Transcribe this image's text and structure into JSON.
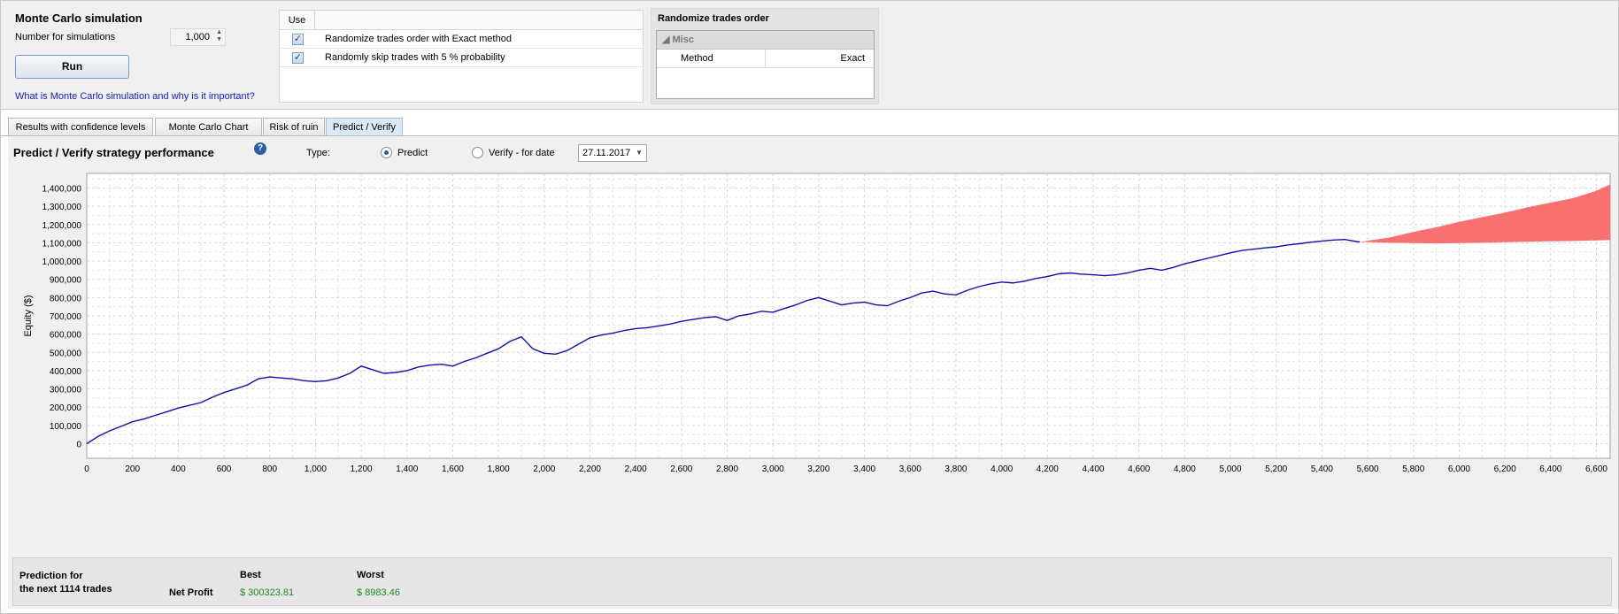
{
  "montecarlo": {
    "title": "Monte Carlo simulation",
    "num_label": "Number for simulations",
    "num_value": "1,000",
    "run_label": "Run",
    "help_link": "What is Monte Carlo simulation and why is it important?"
  },
  "use_table": {
    "header": "Use",
    "rows": [
      {
        "checked": true,
        "label": "Randomize trades order with Exact method"
      },
      {
        "checked": true,
        "label": "Randomly skip trades with 5 % probability"
      }
    ]
  },
  "randomize_panel": {
    "title": "Randomize trades order",
    "group": "Misc",
    "property_key": "Method",
    "property_value": "Exact"
  },
  "tabs": [
    {
      "label": "Results with confidence levels",
      "active": false
    },
    {
      "label": "Monte Carlo Chart",
      "active": false
    },
    {
      "label": "Risk of ruin",
      "active": false
    },
    {
      "label": "Predict / Verify",
      "active": true
    }
  ],
  "predict": {
    "title": "Predict / Verify strategy performance",
    "help_icon": "question-icon",
    "type_label": "Type:",
    "predict_label": "Predict",
    "predict_selected": true,
    "verify_label": "Verify - for date",
    "date_value": "27.11.2017"
  },
  "chart_data": {
    "type": "line",
    "ylabel": "Equity ($)",
    "xlabel": "",
    "xlim": [
      0,
      6660
    ],
    "ylim": [
      -80000,
      1480000
    ],
    "x_ticks": [
      "0",
      "200",
      "400",
      "600",
      "800",
      "1,000",
      "1,200",
      "1,400",
      "1,600",
      "1,800",
      "2,000",
      "2,200",
      "2,400",
      "2,600",
      "2,800",
      "3,000",
      "3,200",
      "3,400",
      "3,600",
      "3,800",
      "4,000",
      "4,200",
      "4,400",
      "4,600",
      "4,800",
      "5,000",
      "5,200",
      "5,400",
      "5,600",
      "5,800",
      "6,000",
      "6,200",
      "6,400",
      "6,600"
    ],
    "x_tick_values": [
      0,
      200,
      400,
      600,
      800,
      1000,
      1200,
      1400,
      1600,
      1800,
      2000,
      2200,
      2400,
      2600,
      2800,
      3000,
      3200,
      3400,
      3600,
      3800,
      4000,
      4200,
      4400,
      4600,
      4800,
      5000,
      5200,
      5400,
      5600,
      5800,
      6000,
      6200,
      6400,
      6600
    ],
    "y_ticks": [
      "0",
      "100,000",
      "200,000",
      "300,000",
      "400,000",
      "500,000",
      "600,000",
      "700,000",
      "800,000",
      "900,000",
      "1,000,000",
      "1,100,000",
      "1,200,000",
      "1,300,000",
      "1,400,000"
    ],
    "y_tick_values": [
      0,
      100000,
      200000,
      300000,
      400000,
      500000,
      600000,
      700000,
      800000,
      900000,
      1000000,
      1100000,
      1200000,
      1300000,
      1400000
    ],
    "grid": true,
    "equity_color": "#1010b0",
    "prediction_color": "#f87070",
    "equity": {
      "x": [
        0,
        50,
        100,
        150,
        200,
        250,
        300,
        350,
        400,
        450,
        500,
        550,
        600,
        650,
        700,
        750,
        800,
        850,
        900,
        950,
        1000,
        1050,
        1100,
        1150,
        1200,
        1250,
        1300,
        1350,
        1400,
        1450,
        1500,
        1550,
        1600,
        1650,
        1700,
        1750,
        1800,
        1850,
        1900,
        1950,
        2000,
        2050,
        2100,
        2150,
        2200,
        2250,
        2300,
        2350,
        2400,
        2450,
        2500,
        2550,
        2600,
        2650,
        2700,
        2750,
        2800,
        2850,
        2900,
        2950,
        3000,
        3050,
        3100,
        3150,
        3200,
        3250,
        3300,
        3350,
        3400,
        3450,
        3500,
        3550,
        3600,
        3650,
        3700,
        3750,
        3800,
        3850,
        3900,
        3950,
        4000,
        4050,
        4100,
        4150,
        4200,
        4250,
        4300,
        4350,
        4400,
        4450,
        4500,
        4550,
        4600,
        4650,
        4700,
        4750,
        4800,
        4850,
        4900,
        4950,
        5000,
        5050,
        5100,
        5150,
        5200,
        5250,
        5300,
        5350,
        5400,
        5450,
        5500,
        5550,
        5566
      ],
      "y": [
        0,
        40000,
        70000,
        95000,
        120000,
        135000,
        155000,
        175000,
        195000,
        210000,
        225000,
        255000,
        280000,
        300000,
        320000,
        355000,
        365000,
        360000,
        355000,
        345000,
        340000,
        345000,
        360000,
        385000,
        425000,
        405000,
        385000,
        390000,
        400000,
        420000,
        430000,
        435000,
        425000,
        450000,
        470000,
        495000,
        520000,
        560000,
        585000,
        520000,
        495000,
        490000,
        510000,
        545000,
        580000,
        595000,
        605000,
        620000,
        630000,
        635000,
        645000,
        655000,
        670000,
        680000,
        690000,
        695000,
        675000,
        700000,
        710000,
        725000,
        720000,
        740000,
        760000,
        785000,
        800000,
        780000,
        760000,
        770000,
        775000,
        760000,
        755000,
        780000,
        800000,
        825000,
        835000,
        820000,
        815000,
        840000,
        860000,
        875000,
        885000,
        880000,
        890000,
        905000,
        915000,
        930000,
        935000,
        928000,
        925000,
        920000,
        925000,
        935000,
        950000,
        960000,
        950000,
        965000,
        985000,
        1000000,
        1015000,
        1030000,
        1045000,
        1058000,
        1065000,
        1072000,
        1078000,
        1088000,
        1095000,
        1103000,
        1110000,
        1115000,
        1118000,
        1107000,
        1105000
      ]
    },
    "prediction_band": {
      "x": [
        5566,
        5700,
        5800,
        5900,
        6000,
        6100,
        6200,
        6300,
        6400,
        6500,
        6600,
        6660
      ],
      "upper": [
        1105000,
        1130000,
        1160000,
        1185000,
        1215000,
        1240000,
        1265000,
        1295000,
        1320000,
        1345000,
        1385000,
        1420000
      ],
      "lower": [
        1105000,
        1100000,
        1098000,
        1097000,
        1098000,
        1100000,
        1103000,
        1106000,
        1108000,
        1110000,
        1113000,
        1115000
      ]
    }
  },
  "footer": {
    "prediction_line1": "Prediction for",
    "prediction_line2": "the next 1114 trades",
    "net_profit_label": "Net Profit",
    "best_label": "Best",
    "worst_label": "Worst",
    "best_value": "$ 300323.81",
    "worst_value": "$ 8983.46"
  }
}
